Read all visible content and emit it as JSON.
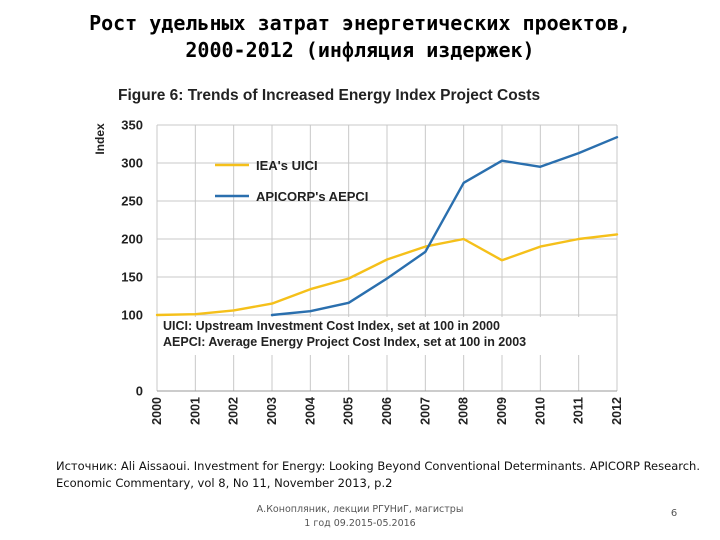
{
  "slide": {
    "title_line1": "Рост удельных затрат энергетических проектов,",
    "title_line2": "2000-2012 (инфляция издержек)"
  },
  "source": {
    "line1": "Источник: Ali Aissaoui. Investment for Energy: Looking Beyond Conventional Determinants. APICORP Research.",
    "line2": "Economic Commentary, vol 8, No 11, November 2013, p.2"
  },
  "footer": {
    "author_line1": "А.Конопляник, лекции РГУНиГ, магистры",
    "author_line2": "1 год 09.2015-05.2016",
    "page_number": "6"
  },
  "chart_data": {
    "type": "line",
    "title": "Figure 6: Trends of Increased Energy Index Project Costs",
    "ylabel": "Index",
    "xlabel": "",
    "x": [
      "2000",
      "2001",
      "2002",
      "2003",
      "2004",
      "2005",
      "2006",
      "2007",
      "2008",
      "2009",
      "2010",
      "2011",
      "2012"
    ],
    "yticks": [
      0,
      100,
      150,
      200,
      250,
      300,
      350
    ],
    "ytick_labels": [
      "0",
      "100",
      "150",
      "200",
      "250",
      "300",
      "350"
    ],
    "ylim": [
      0,
      350
    ],
    "grid": true,
    "legend_position": "top-left",
    "series": [
      {
        "name": "IEA's UICI",
        "color": "#f5c01a",
        "values": [
          100,
          101,
          106,
          115,
          134,
          148,
          173,
          190,
          200,
          172,
          190,
          200,
          206
        ]
      },
      {
        "name": "APICORP's AEPCI",
        "color": "#2a6fae",
        "values": [
          null,
          null,
          null,
          100,
          105,
          116,
          148,
          183,
          274,
          303,
          295,
          313,
          334
        ]
      }
    ],
    "annotations": [
      "UICI: Upstream Investment Cost Index, set at 100 in 2000",
      "AEPCI: Average Energy Project Cost Index, set at 100 in 2003"
    ]
  }
}
